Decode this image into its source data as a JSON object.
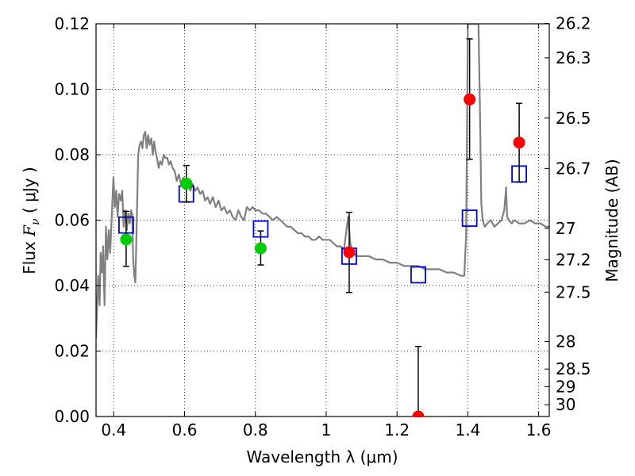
{
  "chart_data": {
    "type": "scatter",
    "xlabel": "Wavelength  λ (μm)",
    "ylabel_prefix": "Flux ",
    "ylabel_var": "F",
    "ylabel_sub": "ν",
    "ylabel_unit": "  ( μJy )",
    "y2label": "Magnitude (AB)",
    "xlim": [
      0.35,
      1.63
    ],
    "ylim": [
      0.0,
      0.12
    ],
    "grid": true,
    "x_ticks": [
      {
        "value": 0.4,
        "label": "0.4"
      },
      {
        "value": 0.6,
        "label": "0.6"
      },
      {
        "value": 0.8,
        "label": "0.8"
      },
      {
        "value": 1.0,
        "label": "1"
      },
      {
        "value": 1.2,
        "label": "1.2"
      },
      {
        "value": 1.4,
        "label": "1.4"
      },
      {
        "value": 1.6,
        "label": "1.6"
      }
    ],
    "y_ticks": [
      {
        "value": 0.0,
        "label": "0.00"
      },
      {
        "value": 0.02,
        "label": "0.02"
      },
      {
        "value": 0.04,
        "label": "0.04"
      },
      {
        "value": 0.06,
        "label": "0.06"
      },
      {
        "value": 0.08,
        "label": "0.08"
      },
      {
        "value": 0.1,
        "label": "0.10"
      },
      {
        "value": 0.12,
        "label": "0.12"
      }
    ],
    "mag_ticks": [
      {
        "flux": 0.1201,
        "label": "26.2"
      },
      {
        "flux": 0.1096,
        "label": "26.3"
      },
      {
        "flux": 0.0912,
        "label": "26.5"
      },
      {
        "flux": 0.0758,
        "label": "26.7"
      },
      {
        "flux": 0.0575,
        "label": "27"
      },
      {
        "flux": 0.0479,
        "label": "27.2"
      },
      {
        "flux": 0.038,
        "label": "27.5"
      },
      {
        "flux": 0.0229,
        "label": "28"
      },
      {
        "flux": 0.0145,
        "label": "28.5"
      },
      {
        "flux": 0.0091,
        "label": "29"
      },
      {
        "flux": 0.0036,
        "label": "30"
      }
    ],
    "series": [
      {
        "kind": "line",
        "color": "#808080",
        "points": [
          [
            0.35,
            0.024
          ],
          [
            0.356,
            0.043
          ],
          [
            0.36,
            0.034
          ],
          [
            0.363,
            0.05
          ],
          [
            0.367,
            0.044
          ],
          [
            0.37,
            0.052
          ],
          [
            0.374,
            0.034
          ],
          [
            0.378,
            0.058
          ],
          [
            0.382,
            0.048
          ],
          [
            0.386,
            0.057
          ],
          [
            0.39,
            0.05
          ],
          [
            0.395,
            0.063
          ],
          [
            0.399,
            0.073
          ],
          [
            0.403,
            0.064
          ],
          [
            0.407,
            0.069
          ],
          [
            0.411,
            0.061
          ],
          [
            0.415,
            0.068
          ],
          [
            0.42,
            0.066
          ],
          [
            0.424,
            0.069
          ],
          [
            0.428,
            0.058
          ],
          [
            0.432,
            0.063
          ],
          [
            0.437,
            0.057
          ],
          [
            0.441,
            0.062
          ],
          [
            0.445,
            0.059
          ],
          [
            0.449,
            0.063
          ],
          [
            0.452,
            0.062
          ],
          [
            0.455,
            0.048
          ],
          [
            0.458,
            0.043
          ],
          [
            0.461,
            0.041
          ],
          [
            0.463,
            0.05
          ],
          [
            0.466,
            0.064
          ],
          [
            0.469,
            0.08
          ],
          [
            0.473,
            0.083
          ],
          [
            0.477,
            0.084
          ],
          [
            0.481,
            0.082
          ],
          [
            0.485,
            0.086
          ],
          [
            0.489,
            0.087
          ],
          [
            0.493,
            0.082
          ],
          [
            0.497,
            0.086
          ],
          [
            0.501,
            0.083
          ],
          [
            0.506,
            0.085
          ],
          [
            0.51,
            0.08
          ],
          [
            0.514,
            0.084
          ],
          [
            0.518,
            0.081
          ],
          [
            0.522,
            0.079
          ],
          [
            0.527,
            0.076
          ],
          [
            0.531,
            0.078
          ],
          [
            0.536,
            0.077
          ],
          [
            0.541,
            0.08
          ],
          [
            0.546,
            0.079
          ],
          [
            0.551,
            0.079
          ],
          [
            0.556,
            0.077
          ],
          [
            0.561,
            0.078
          ],
          [
            0.566,
            0.076
          ],
          [
            0.572,
            0.075
          ],
          [
            0.578,
            0.072
          ],
          [
            0.584,
            0.074
          ],
          [
            0.59,
            0.071
          ],
          [
            0.596,
            0.073
          ],
          [
            0.602,
            0.07
          ],
          [
            0.609,
            0.072
          ],
          [
            0.616,
            0.069
          ],
          [
            0.623,
            0.071
          ],
          [
            0.63,
            0.069
          ],
          [
            0.637,
            0.07
          ],
          [
            0.644,
            0.068
          ],
          [
            0.651,
            0.069
          ],
          [
            0.658,
            0.066
          ],
          [
            0.665,
            0.067
          ],
          [
            0.672,
            0.065
          ],
          [
            0.68,
            0.067
          ],
          [
            0.688,
            0.064
          ],
          [
            0.696,
            0.066
          ],
          [
            0.704,
            0.063
          ],
          [
            0.712,
            0.064
          ],
          [
            0.72,
            0.062
          ],
          [
            0.728,
            0.063
          ],
          [
            0.736,
            0.061
          ],
          [
            0.744,
            0.06
          ],
          [
            0.752,
            0.063
          ],
          [
            0.76,
            0.061
          ],
          [
            0.768,
            0.06
          ],
          [
            0.776,
            0.064
          ],
          [
            0.784,
            0.063
          ],
          [
            0.792,
            0.064
          ],
          [
            0.8,
            0.063
          ],
          [
            0.81,
            0.063
          ],
          [
            0.82,
            0.062
          ],
          [
            0.83,
            0.062
          ],
          [
            0.84,
            0.061
          ],
          [
            0.85,
            0.06
          ],
          [
            0.86,
            0.061
          ],
          [
            0.87,
            0.06
          ],
          [
            0.88,
            0.059
          ],
          [
            0.89,
            0.058
          ],
          [
            0.9,
            0.058
          ],
          [
            0.91,
            0.057
          ],
          [
            0.92,
            0.056
          ],
          [
            0.93,
            0.056
          ],
          [
            0.94,
            0.055
          ],
          [
            0.95,
            0.055
          ],
          [
            0.96,
            0.054
          ],
          [
            0.97,
            0.054
          ],
          [
            0.98,
            0.055
          ],
          [
            0.99,
            0.054
          ],
          [
            1.0,
            0.054
          ],
          [
            1.01,
            0.054
          ],
          [
            1.02,
            0.053
          ],
          [
            1.03,
            0.052
          ],
          [
            1.04,
            0.052
          ],
          [
            1.05,
            0.051
          ],
          [
            1.055,
            0.055
          ],
          [
            1.062,
            0.061
          ],
          [
            1.068,
            0.053
          ],
          [
            1.075,
            0.05
          ],
          [
            1.085,
            0.049
          ],
          [
            1.1,
            0.049
          ],
          [
            1.12,
            0.049
          ],
          [
            1.14,
            0.048
          ],
          [
            1.16,
            0.048
          ],
          [
            1.18,
            0.047
          ],
          [
            1.2,
            0.047
          ],
          [
            1.22,
            0.046
          ],
          [
            1.24,
            0.046
          ],
          [
            1.26,
            0.046
          ],
          [
            1.28,
            0.045
          ],
          [
            1.3,
            0.045
          ],
          [
            1.32,
            0.045
          ],
          [
            1.34,
            0.044
          ],
          [
            1.36,
            0.044
          ],
          [
            1.38,
            0.043
          ],
          [
            1.39,
            0.043
          ],
          [
            1.395,
            0.055
          ],
          [
            1.398,
            0.09
          ],
          [
            1.4,
            0.12
          ],
          [
            1.43,
            0.12
          ],
          [
            1.434,
            0.095
          ],
          [
            1.438,
            0.065
          ],
          [
            1.442,
            0.06
          ],
          [
            1.448,
            0.058
          ],
          [
            1.455,
            0.059
          ],
          [
            1.465,
            0.06
          ],
          [
            1.475,
            0.058
          ],
          [
            1.485,
            0.059
          ],
          [
            1.495,
            0.06
          ],
          [
            1.503,
            0.063
          ],
          [
            1.508,
            0.07
          ],
          [
            1.511,
            0.061
          ],
          [
            1.516,
            0.06
          ],
          [
            1.524,
            0.059
          ],
          [
            1.532,
            0.06
          ],
          [
            1.545,
            0.059
          ],
          [
            1.56,
            0.059
          ],
          [
            1.575,
            0.06
          ],
          [
            1.59,
            0.059
          ],
          [
            1.605,
            0.059
          ],
          [
            1.62,
            0.058
          ],
          [
            1.63,
            0.058
          ]
        ]
      },
      {
        "kind": "squares",
        "color": "#0000cc",
        "points": [
          [
            0.435,
            0.0585
          ],
          [
            0.605,
            0.068
          ],
          [
            0.815,
            0.0573
          ],
          [
            1.065,
            0.049
          ],
          [
            1.26,
            0.0433
          ],
          [
            1.405,
            0.0606
          ],
          [
            1.545,
            0.0741
          ]
        ]
      },
      {
        "kind": "circles",
        "color": "#00cc00",
        "points": [
          {
            "x": 0.435,
            "y": 0.0541,
            "lo": 0.0459,
            "hi": 0.0627
          },
          {
            "x": 0.605,
            "y": 0.0712,
            "lo": 0.0655,
            "hi": 0.0767
          },
          {
            "x": 0.815,
            "y": 0.0514,
            "lo": 0.0463,
            "hi": 0.0567
          }
        ]
      },
      {
        "kind": "circles",
        "color": "#ff0000",
        "points": [
          {
            "x": 1.065,
            "y": 0.0502,
            "lo": 0.0379,
            "hi": 0.0624
          },
          {
            "x": 1.26,
            "y": 0.0,
            "lo": 0.0,
            "hi": 0.0214
          },
          {
            "x": 1.405,
            "y": 0.0969,
            "lo": 0.0786,
            "hi": 0.1154
          },
          {
            "x": 1.545,
            "y": 0.0837,
            "lo": 0.0716,
            "hi": 0.0957
          }
        ]
      }
    ]
  }
}
